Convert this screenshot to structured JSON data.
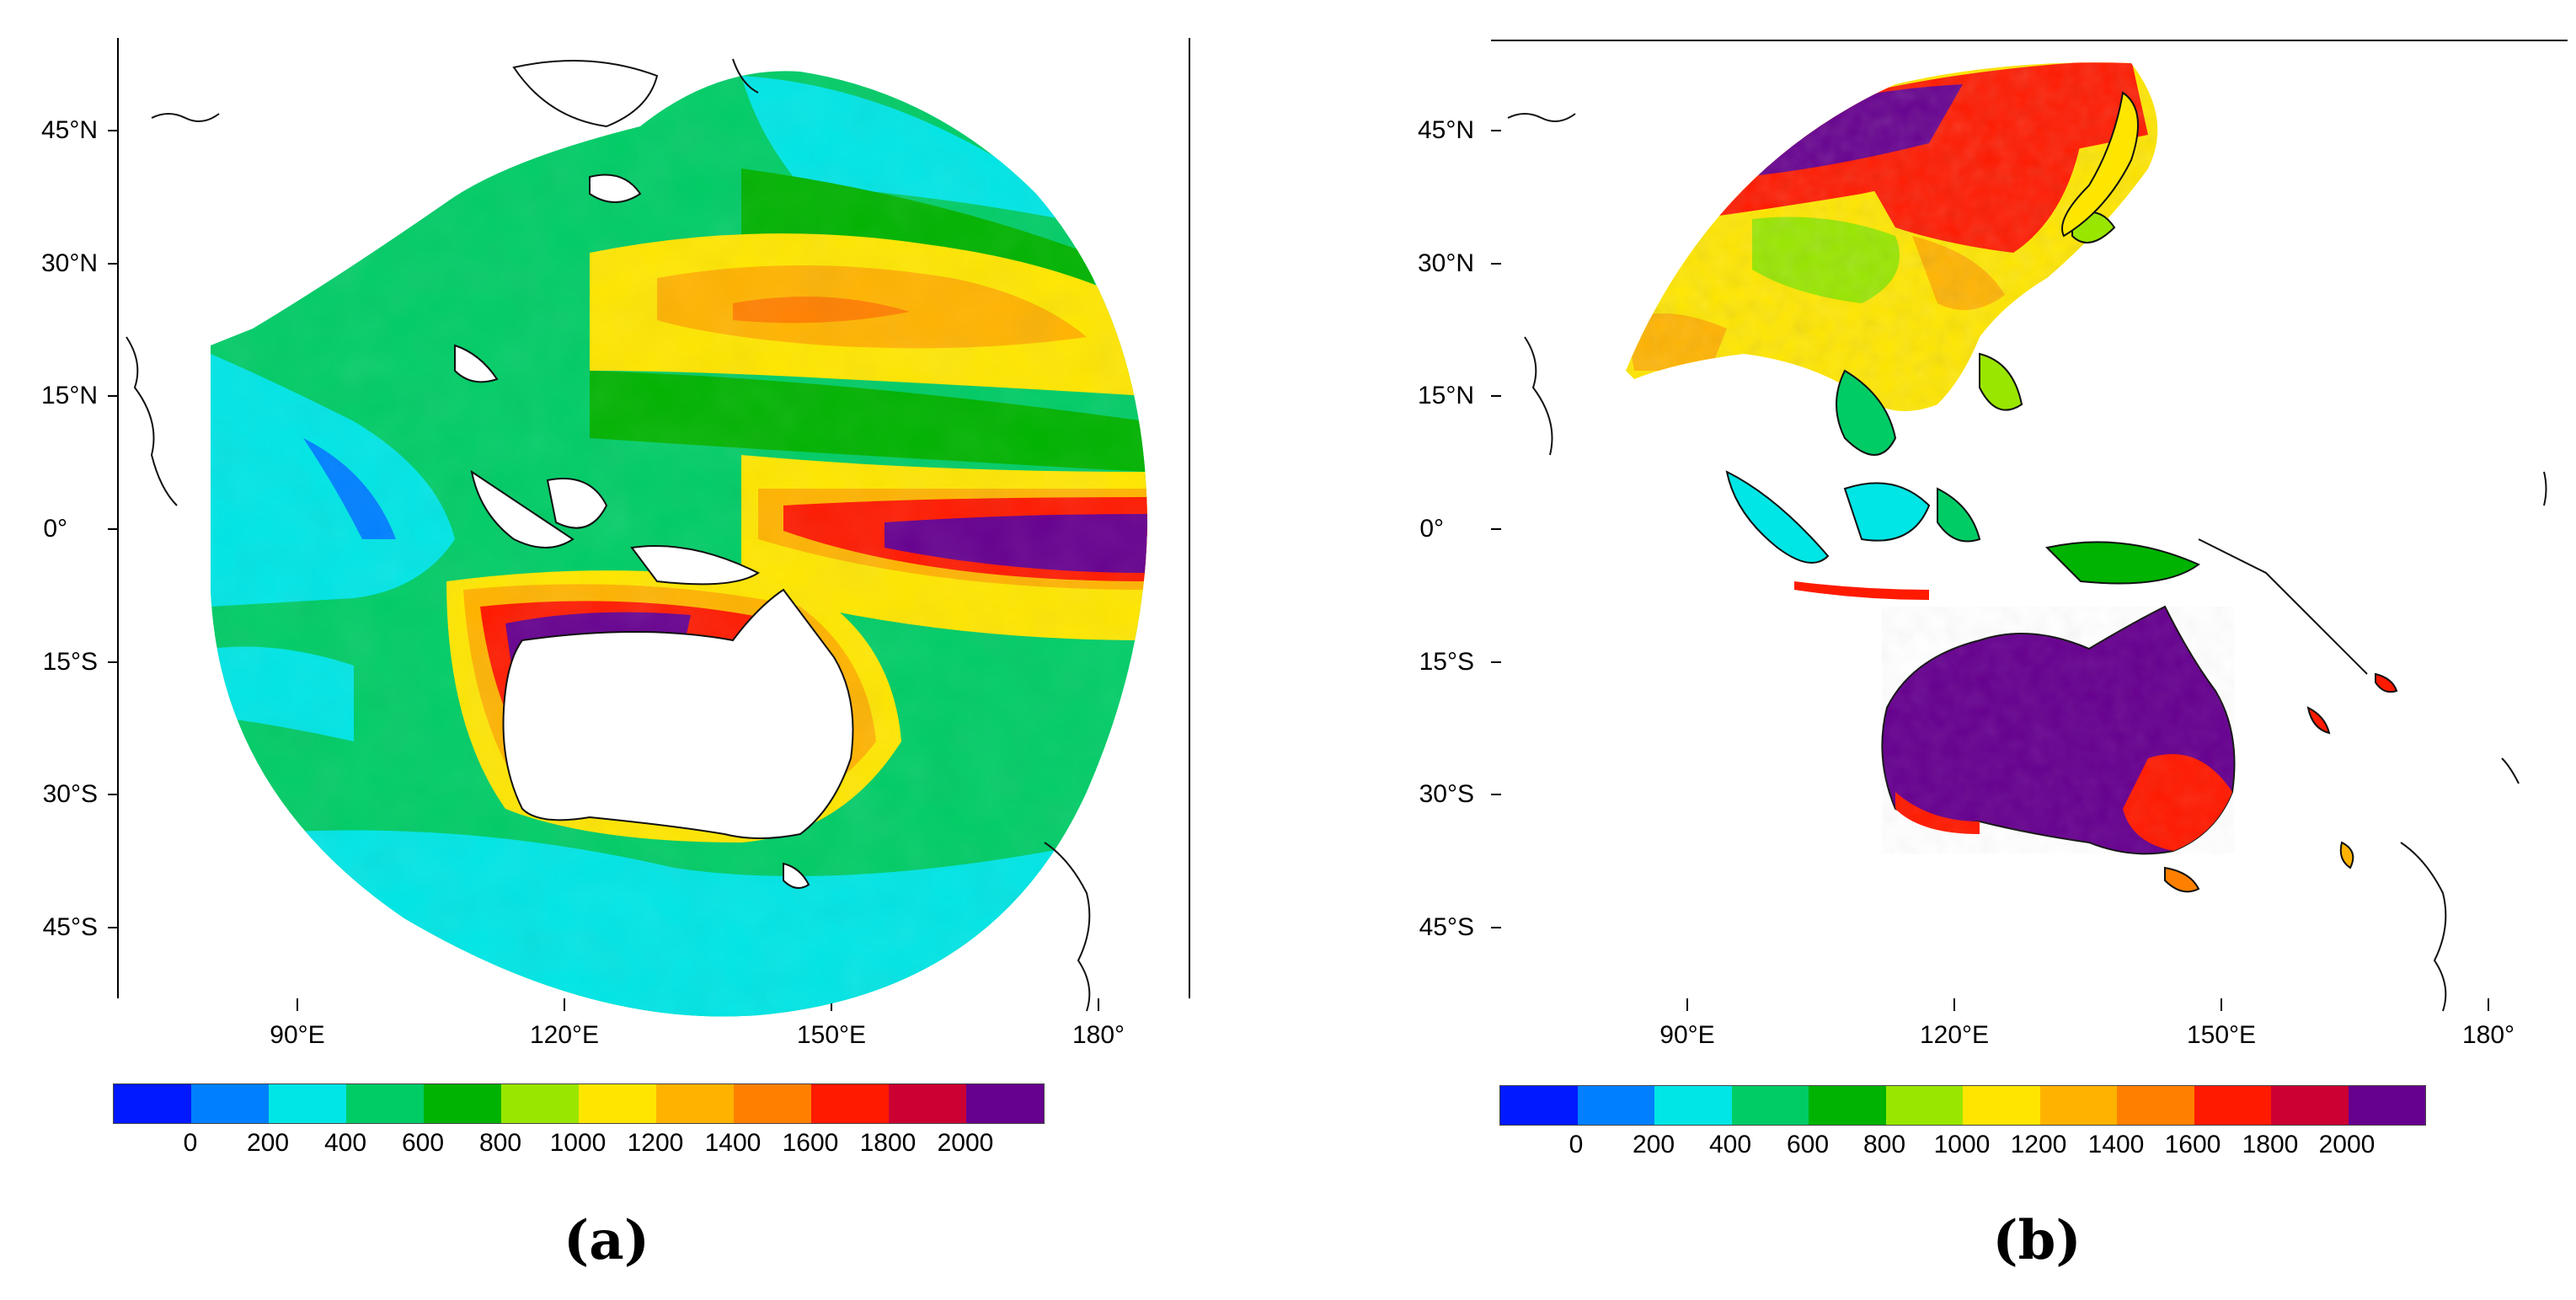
{
  "colorbar": {
    "colors": [
      "#0019ff",
      "#0080ff",
      "#00e5e5",
      "#00cc66",
      "#00b300",
      "#99e600",
      "#ffe600",
      "#ffb300",
      "#ff8000",
      "#ff1a00",
      "#cc0033",
      "#66008f"
    ],
    "tick_labels": [
      "0",
      "200",
      "400",
      "600",
      "800",
      "1000",
      "1200",
      "1400",
      "1600",
      "1800",
      "2000"
    ]
  },
  "land_color": "#ffffff",
  "coast_color": "#111111",
  "panels": [
    {
      "label": "(a)",
      "lat_labels": [
        "45°N",
        "30°N",
        "15°N",
        "0°",
        "15°S",
        "30°S",
        "45°S"
      ],
      "lon_labels": [
        "90°E",
        "120°E",
        "150°E",
        "180°"
      ]
    },
    {
      "label": "(b)",
      "lat_labels": [
        "45°N",
        "30°N",
        "15°N",
        "0°",
        "15°S",
        "30°S",
        "45°S"
      ],
      "lon_labels": [
        "90°E",
        "120°E",
        "150°E",
        "180°"
      ]
    }
  ]
}
